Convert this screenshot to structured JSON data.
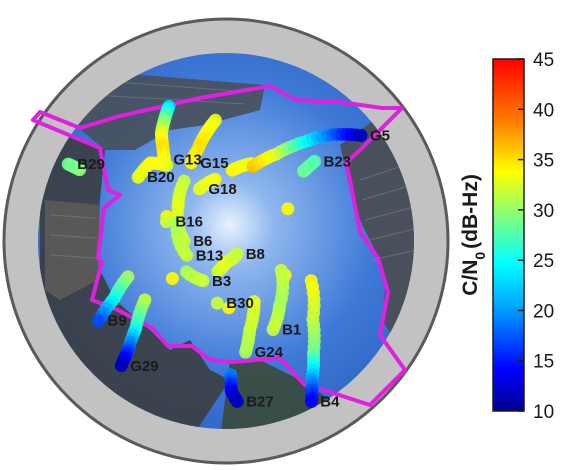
{
  "chart_data": {
    "type": "scatter",
    "title": "",
    "colorbar": {
      "label_main": "C/N",
      "label_sub": "0",
      "label_unit": "(dB-Hz)",
      "min": 10,
      "max": 45,
      "ticks": [
        "45",
        "40",
        "35",
        "30",
        "25",
        "20",
        "15",
        "10"
      ],
      "colormap": "jet"
    },
    "satellites": [
      {
        "label": "G13",
        "points": [
          {
            "az": 337,
            "el": 20,
            "cn0": 22
          },
          {
            "az": 333,
            "el": 25,
            "cn0": 27
          },
          {
            "az": 329,
            "el": 30,
            "cn0": 31
          },
          {
            "az": 326,
            "el": 36,
            "cn0": 33
          },
          {
            "az": 323,
            "el": 41,
            "cn0": 32
          }
        ]
      },
      {
        "label": "G15",
        "points": [
          {
            "az": 355,
            "el": 32,
            "cn0": 31
          },
          {
            "az": 349,
            "el": 38,
            "cn0": 32
          },
          {
            "az": 343,
            "el": 44,
            "cn0": 33
          },
          {
            "az": 336,
            "el": 49,
            "cn0": 32
          }
        ]
      },
      {
        "label": "G18",
        "points": [
          {
            "az": 18,
            "el": 51,
            "cn0": 31
          },
          {
            "az": 5,
            "el": 56,
            "cn0": 32
          },
          {
            "az": 350,
            "el": 60,
            "cn0": 32
          },
          {
            "az": 333,
            "el": 62,
            "cn0": 31
          }
        ]
      },
      {
        "label": "G5",
        "points": [
          {
            "az": 20,
            "el": 52,
            "cn0": 34
          },
          {
            "az": 30,
            "el": 42,
            "cn0": 31
          },
          {
            "az": 38,
            "el": 30,
            "cn0": 24
          },
          {
            "az": 45,
            "el": 18,
            "cn0": 18
          },
          {
            "az": 52,
            "el": 8,
            "cn0": 12
          }
        ]
      },
      {
        "label": "B23",
        "points": [
          {
            "az": 48,
            "el": 40,
            "cn0": 27
          },
          {
            "az": 48,
            "el": 33,
            "cn0": 26
          }
        ]
      },
      {
        "label": "B1",
        "points": [
          {
            "az": 118,
            "el": 60,
            "cn0": 30
          },
          {
            "az": 140,
            "el": 50,
            "cn0": 29
          },
          {
            "az": 152,
            "el": 42,
            "cn0": 30
          }
        ]
      },
      {
        "label": "B4",
        "points": [
          {
            "az": 115,
            "el": 45,
            "cn0": 32
          },
          {
            "az": 132,
            "el": 34,
            "cn0": 30
          },
          {
            "az": 142,
            "el": 22,
            "cn0": 27
          },
          {
            "az": 148,
            "el": 12,
            "cn0": 20
          },
          {
            "az": 152,
            "el": 3,
            "cn0": 14
          }
        ]
      },
      {
        "label": "G24",
        "points": [
          {
            "az": 155,
            "el": 58,
            "cn0": 31
          },
          {
            "az": 165,
            "el": 46,
            "cn0": 30
          },
          {
            "az": 170,
            "el": 36,
            "cn0": 29
          }
        ]
      },
      {
        "label": "B27",
        "points": [
          {
            "az": 178,
            "el": 26,
            "cn0": 19
          },
          {
            "az": 178,
            "el": 18,
            "cn0": 14
          },
          {
            "az": 176,
            "el": 13,
            "cn0": 12
          }
        ]
      },
      {
        "label": "G29",
        "points": [
          {
            "az": 234,
            "el": 42,
            "cn0": 30
          },
          {
            "az": 226,
            "el": 30,
            "cn0": 24
          },
          {
            "az": 222,
            "el": 20,
            "cn0": 17
          },
          {
            "az": 220,
            "el": 12,
            "cn0": 12
          }
        ]
      },
      {
        "label": "B9",
        "points": [
          {
            "az": 250,
            "el": 40,
            "cn0": 29
          },
          {
            "az": 243,
            "el": 30,
            "cn0": 24
          },
          {
            "az": 238,
            "el": 18,
            "cn0": 17
          }
        ]
      },
      {
        "label": "B20",
        "points": [
          {
            "az": 322,
            "el": 44,
            "cn0": 31
          },
          {
            "az": 316,
            "el": 38,
            "cn0": 32
          },
          {
            "az": 306,
            "el": 38,
            "cn0": 31
          }
        ]
      },
      {
        "label": "B29",
        "points": [
          {
            "az": 296,
            "el": 12,
            "cn0": 28
          },
          {
            "az": 296,
            "el": 6,
            "cn0": 27
          }
        ]
      },
      {
        "label": "B6",
        "points": [
          {
            "az": 325,
            "el": 55,
            "cn0": 30
          },
          {
            "az": 305,
            "el": 62,
            "cn0": 31
          },
          {
            "az": 270,
            "el": 70,
            "cn0": 30
          }
        ]
      },
      {
        "label": "B16",
        "points": [
          {
            "az": 288,
            "el": 60,
            "cn0": 30
          }
        ]
      },
      {
        "label": "B13",
        "points": [
          {
            "az": 290,
            "el": 65,
            "cn0": 29
          },
          {
            "az": 250,
            "el": 70,
            "cn0": 30
          }
        ]
      },
      {
        "label": "B3",
        "points": [
          {
            "az": 232,
            "el": 66,
            "cn0": 29
          },
          {
            "az": 210,
            "el": 68,
            "cn0": 30
          }
        ]
      },
      {
        "label": "B8",
        "points": [
          {
            "az": 195,
            "el": 75,
            "cn0": 30
          },
          {
            "az": 180,
            "el": 80,
            "cn0": 31
          },
          {
            "az": 140,
            "el": 82,
            "cn0": 30
          }
        ]
      },
      {
        "label": "B30",
        "points": [
          {
            "az": 188,
            "el": 60,
            "cn0": 30
          }
        ]
      }
    ]
  }
}
